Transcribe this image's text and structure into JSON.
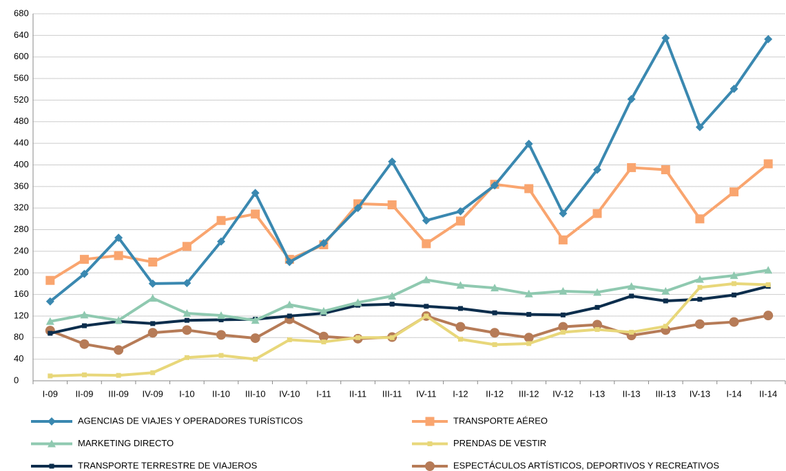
{
  "chart_data": {
    "type": "line",
    "categories": [
      "I-09",
      "II-09",
      "III-09",
      "IV-09",
      "I-10",
      "II-10",
      "III-10",
      "IV-10",
      "I-11",
      "II-11",
      "III-11",
      "IV-11",
      "I-12",
      "II-12",
      "III-12",
      "IV-12",
      "I-13",
      "II-13",
      "III-13",
      "IV-13",
      "I-14",
      "II-14"
    ],
    "series": [
      {
        "name": "AGENCIAS DE VIAJES Y OPERADORES TURÍSTICOS",
        "color": "#3a88b0",
        "marker": "diamond",
        "values": [
          147,
          198,
          265,
          180,
          181,
          258,
          348,
          220,
          255,
          320,
          406,
          297,
          314,
          362,
          439,
          310,
          391,
          522,
          635,
          470,
          541,
          633
        ]
      },
      {
        "name": "TRANSPORTE AÉREO",
        "color": "#f9a56f",
        "marker": "square",
        "values": [
          186,
          225,
          232,
          220,
          249,
          297,
          309,
          225,
          252,
          328,
          326,
          254,
          296,
          364,
          356,
          261,
          310,
          395,
          391,
          300,
          350,
          402
        ]
      },
      {
        "name": "MARKETING DIRECTO",
        "color": "#8fc9b0",
        "marker": "triangle",
        "values": [
          110,
          122,
          112,
          153,
          125,
          121,
          112,
          141,
          129,
          145,
          157,
          187,
          177,
          172,
          161,
          166,
          164,
          175,
          166,
          188,
          195,
          205
        ]
      },
      {
        "name": "PRENDAS DE VESTIR",
        "color": "#e8d77a",
        "marker": "smallsquare",
        "values": [
          9,
          11,
          10,
          15,
          43,
          47,
          40,
          76,
          72,
          80,
          80,
          120,
          77,
          67,
          69,
          90,
          95,
          90,
          101,
          173,
          180,
          178
        ]
      },
      {
        "name": "TRANSPORTE TERRESTRE DE VIAJEROS",
        "color": "#0b2d4c",
        "marker": "smallsquare",
        "values": [
          88,
          102,
          110,
          106,
          112,
          113,
          114,
          120,
          125,
          140,
          142,
          138,
          134,
          126,
          123,
          122,
          136,
          157,
          148,
          151,
          159,
          175
        ]
      },
      {
        "name": "ESPECTÁCULOS ARTÍSTICOS, DEPORTIVOS Y RECREATIVOS",
        "color": "#b67b57",
        "marker": "circle",
        "values": [
          93,
          68,
          57,
          89,
          94,
          85,
          79,
          114,
          82,
          78,
          81,
          120,
          100,
          89,
          80,
          100,
          104,
          84,
          94,
          105,
          109,
          121
        ]
      }
    ],
    "ylim": [
      0,
      680
    ],
    "yticks": [
      0,
      40,
      80,
      120,
      160,
      200,
      240,
      280,
      320,
      360,
      400,
      440,
      480,
      520,
      560,
      600,
      640,
      680
    ],
    "grid": true
  }
}
